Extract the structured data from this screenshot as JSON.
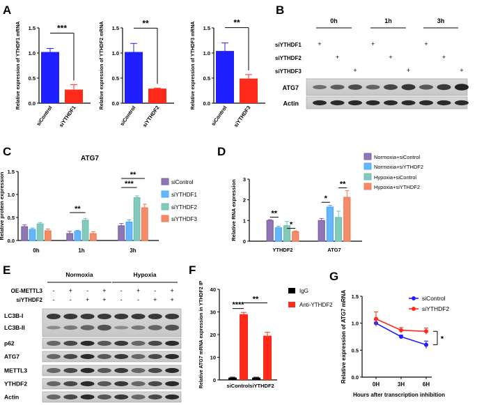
{
  "colors": {
    "blue": "#1f1fff",
    "red": "#ff2a1a",
    "purple": "#7b5ea8",
    "lightblue": "#4aa8ff",
    "teal": "#6fc1b0",
    "orange": "#f27852",
    "black": "#000000"
  },
  "panels": {
    "A": "A",
    "B": "B",
    "C": "C",
    "D": "D",
    "E": "E",
    "F": "F",
    "G": "G"
  },
  "chart_data": [
    {
      "id": "A1",
      "type": "bar",
      "categories": [
        "siControl",
        "siYTHDF1"
      ],
      "values": [
        1.02,
        0.27
      ],
      "errors": [
        0.07,
        0.1
      ],
      "ylabel": "Relative expression of YTHDF1 mRNA",
      "ylim": [
        0,
        1.5
      ],
      "yticks": [
        "0.0",
        "0.5",
        "1.0",
        "1.5"
      ],
      "sig": "***"
    },
    {
      "id": "A2",
      "type": "bar",
      "categories": [
        "siControl",
        "siYTHDF2"
      ],
      "values": [
        1.02,
        0.29
      ],
      "errors": [
        0.17,
        0.01
      ],
      "ylabel": "Relative expression of YTHDF2 mRNA",
      "ylim": [
        0,
        1.5
      ],
      "yticks": [
        "0.0",
        "0.5",
        "1.0",
        "1.5"
      ],
      "sig": "**"
    },
    {
      "id": "A3",
      "type": "bar",
      "categories": [
        "siControl",
        "siYTHDF3"
      ],
      "values": [
        1.04,
        0.49
      ],
      "errors": [
        0.16,
        0.08
      ],
      "ylabel": "Relative expression of YTHDF3 mRNA",
      "ylim": [
        0,
        1.5
      ],
      "yticks": [
        "0.0",
        "0.5",
        "1.0",
        "1.5"
      ],
      "sig": "**"
    },
    {
      "id": "C",
      "type": "bar",
      "title": "ATG7",
      "categories": [
        "0h",
        "1h",
        "3h"
      ],
      "ylabel": "Relative protein expression",
      "ylim": [
        0,
        1.5
      ],
      "yticks": [
        "0.0",
        "0.5",
        "1.0",
        "1.5"
      ],
      "series": [
        {
          "name": "siControl",
          "values": [
            0.3,
            0.15,
            0.32
          ],
          "errors": [
            0.04,
            0.05,
            0.05
          ]
        },
        {
          "name": "siYTHDF1",
          "values": [
            0.24,
            0.2,
            0.4
          ],
          "errors": [
            0.03,
            0.02,
            0.05
          ]
        },
        {
          "name": "siYTHDF2",
          "values": [
            0.36,
            0.44,
            0.93
          ],
          "errors": [
            0.03,
            0.04,
            0.04
          ]
        },
        {
          "name": "siYTHDF3",
          "values": [
            0.21,
            0.15,
            0.71
          ],
          "errors": [
            0.04,
            0.04,
            0.08
          ]
        }
      ],
      "sig": [
        {
          "label": "**",
          "group": "1h"
        },
        {
          "label": "***",
          "group": "3h"
        },
        {
          "label": "**",
          "group": "3h"
        }
      ]
    },
    {
      "id": "D",
      "type": "bar",
      "categories": [
        "YTHDF2",
        "ATG7"
      ],
      "ylabel": "Relative RNA expression",
      "ylim": [
        0,
        3
      ],
      "yticks": [
        "0",
        "1",
        "2",
        "3"
      ],
      "series": [
        {
          "name": "Normoxia+siControl",
          "values": [
            1.0,
            1.0
          ],
          "errors": [
            0.04,
            0.1
          ]
        },
        {
          "name": "Normoxia+siYTHDF2",
          "values": [
            0.65,
            1.65
          ],
          "errors": [
            0.07,
            0.08
          ]
        },
        {
          "name": "Hypoxia+siControl",
          "values": [
            0.75,
            1.15
          ],
          "errors": [
            0.2,
            0.3
          ]
        },
        {
          "name": "Hypoxia+siYTHDF2",
          "values": [
            0.46,
            2.12
          ],
          "errors": [
            0.04,
            0.32
          ]
        }
      ],
      "sig": [
        {
          "label": "**"
        },
        {
          "label": "*"
        },
        {
          "label": "*"
        },
        {
          "label": "**"
        }
      ]
    },
    {
      "id": "F",
      "type": "bar",
      "categories": [
        "siControl",
        "siYTHDF2"
      ],
      "ylabel": "Relative ATG7 mRNA expression in YTHDF2 IP",
      "ylim": [
        0,
        40
      ],
      "yticks": [
        "0",
        "10",
        "20",
        "30",
        "40"
      ],
      "series": [
        {
          "name": "IgG",
          "values": [
            1.0,
            1.0
          ],
          "errors": [
            0.2,
            0.2
          ]
        },
        {
          "name": "Anti-YTHDF2",
          "values": [
            29.0,
            19.5
          ],
          "errors": [
            0.8,
            1.5
          ]
        }
      ],
      "sig": [
        {
          "label": "****"
        },
        {
          "label": "**"
        }
      ]
    },
    {
      "id": "G",
      "type": "line",
      "x": [
        "0H",
        "3H",
        "6H"
      ],
      "xlabel": "Hours after transcription inhibition",
      "ylabel": "Relative expression of ATG7 mRNA",
      "ylim": [
        0,
        1.5
      ],
      "yticks": [
        "0.0",
        "0.5",
        "1.0",
        "1.5"
      ],
      "series": [
        {
          "name": "siControl",
          "values": [
            1.0,
            0.75,
            0.6
          ],
          "errors": [
            0.06,
            0.03,
            0.07
          ]
        },
        {
          "name": "siYTHDF2",
          "values": [
            1.08,
            0.87,
            0.85
          ],
          "errors": [
            0.13,
            0.05,
            0.06
          ]
        }
      ],
      "sig": "*"
    }
  ],
  "blotB": {
    "timepoints": [
      "0h",
      "1h",
      "3h"
    ],
    "rows": [
      "siYTHDF1",
      "siYTHDF2",
      "siYTHDF3"
    ],
    "plus": "+",
    "bands": [
      "ATG7",
      "Actin"
    ]
  },
  "blotE": {
    "groups": [
      "Normoxia",
      "Hypoxia"
    ],
    "rows": [
      "OE-METTL3",
      "siYTHDF2"
    ],
    "plus": "+",
    "minus": "-",
    "pattern": [
      [
        "-",
        "+",
        "-",
        "+",
        "-",
        "+",
        "-",
        "+"
      ],
      [
        "-",
        "-",
        "+",
        "+",
        "-",
        "-",
        "+",
        "+"
      ]
    ],
    "bands": [
      "LC3B-I",
      "LC3B-II",
      "p62",
      "ATG7",
      "METTL3",
      "YTHDF2",
      "Actin"
    ]
  }
}
